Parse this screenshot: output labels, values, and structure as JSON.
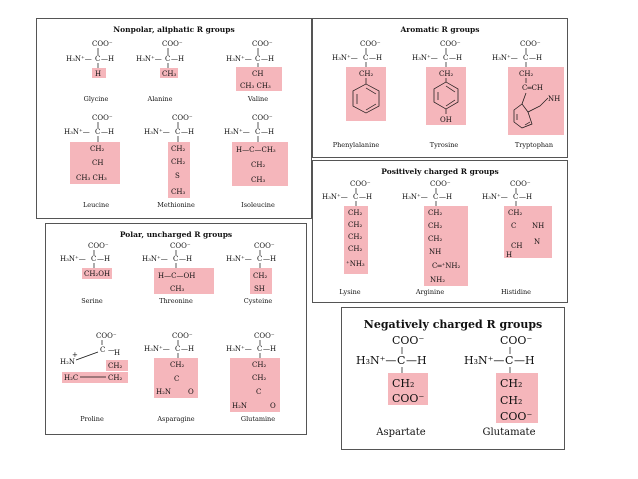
{
  "groups": {
    "nonpolar": {
      "title": "Nonpolar, aliphatic R groups",
      "amino_acids": [
        {
          "name": "Glycine",
          "r": [
            "H"
          ]
        },
        {
          "name": "Alanine",
          "r": [
            "CH₃"
          ]
        },
        {
          "name": "Valine",
          "r": [
            "CH",
            "CH₃ CH₃"
          ]
        },
        {
          "name": "Leucine",
          "r": [
            "CH₂",
            "CH",
            "CH₃ CH₃"
          ]
        },
        {
          "name": "Methionine",
          "r": [
            "CH₂",
            "CH₂",
            "S",
            "CH₃"
          ]
        },
        {
          "name": "Isoleucine",
          "r": [
            "H—C—CH₃",
            "CH₂",
            "CH₃"
          ]
        }
      ]
    },
    "aromatic": {
      "title": "Aromatic R groups",
      "amino_acids": [
        {
          "name": "Phenylalanine",
          "r": [
            "CH₂"
          ]
        },
        {
          "name": "Tyrosine",
          "r": [
            "CH₂",
            "OH"
          ]
        },
        {
          "name": "Tryptophan",
          "r": [
            "CH₂",
            "C═CH",
            "NH"
          ]
        }
      ]
    },
    "positive": {
      "title": "Positively charged R groups",
      "amino_acids": [
        {
          "name": "Lysine",
          "r": [
            "CH₂",
            "CH₂",
            "CH₂",
            "CH₂",
            "⁺NH₃"
          ]
        },
        {
          "name": "Arginine",
          "r": [
            "CH₂",
            "CH₂",
            "CH₂",
            "NH",
            "C═⁺NH₂",
            "NH₂"
          ]
        },
        {
          "name": "Histidine",
          "r": [
            "CH₂",
            "C",
            "CH",
            "H",
            "NH",
            "N"
          ]
        }
      ]
    },
    "polar": {
      "title": "Polar, uncharged R groups",
      "amino_acids": [
        {
          "name": "Serine",
          "r": [
            "CH₂OH"
          ]
        },
        {
          "name": "Threonine",
          "r": [
            "H—C—OH",
            "CH₃"
          ]
        },
        {
          "name": "Cysteine",
          "r": [
            "CH₂",
            "SH"
          ]
        },
        {
          "name": "Proline",
          "r": [
            "C",
            "H",
            "CH₂",
            "H₂C",
            "CH₂"
          ]
        },
        {
          "name": "Asparagine",
          "r": [
            "CH₂",
            "C",
            "H₂N",
            "O"
          ]
        },
        {
          "name": "Glutamine",
          "r": [
            "CH₂",
            "CH₂",
            "C",
            "H₂N",
            "O"
          ]
        }
      ]
    },
    "negative": {
      "title": "Negatively charged R groups",
      "amino_acids": [
        {
          "name": "Aspartate",
          "r": [
            "CH₂",
            "COO⁻"
          ]
        },
        {
          "name": "Glutamate",
          "r": [
            "CH₂",
            "CH₂",
            "COO⁻"
          ]
        }
      ]
    }
  },
  "backbone": {
    "carboxyl": "COO⁻",
    "amine": "H₃N⁺",
    "h_amine": "H₂N⁺",
    "alpha": "C",
    "h": "H"
  },
  "colors": {
    "highlight": "#f5b6bb",
    "border": "#555555"
  }
}
